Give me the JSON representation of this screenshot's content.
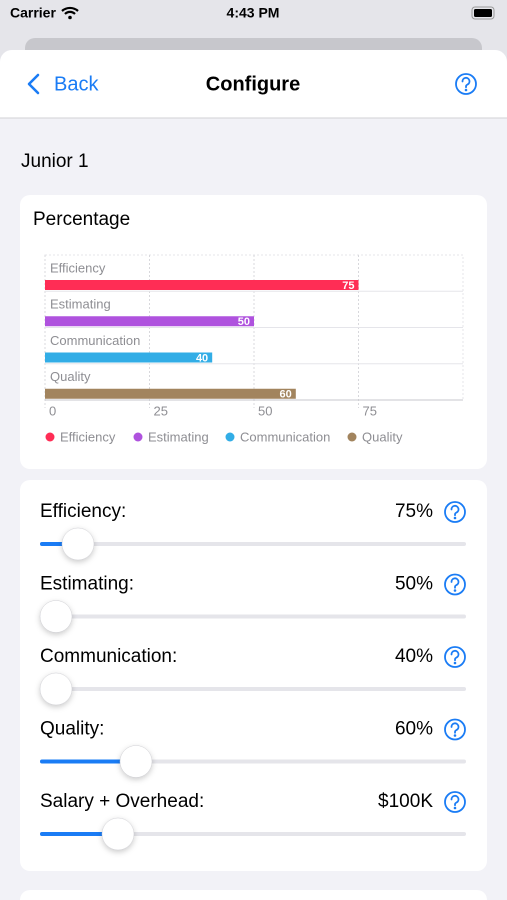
{
  "status_bar": {
    "carrier": "Carrier",
    "time": "4:43 PM"
  },
  "nav": {
    "back": "Back",
    "title": "Configure"
  },
  "section_title": "Junior 1",
  "chart_data": {
    "type": "bar",
    "orientation": "horizontal",
    "title": "Percentage",
    "categories": [
      "Efficiency",
      "Estimating",
      "Communication",
      "Quality"
    ],
    "values": [
      75,
      50,
      40,
      60
    ],
    "colors": [
      "#ff2d55",
      "#af52de",
      "#32ade6",
      "#a2845e"
    ],
    "xlim": [
      0,
      100
    ],
    "xticks": [
      0,
      25,
      50,
      75
    ],
    "grid": true,
    "legend": "bottom"
  },
  "controls": [
    {
      "label": "Efficiency:",
      "value_label": "75%"
    },
    {
      "label": "Estimating:",
      "value_label": "50%"
    },
    {
      "label": "Communication:",
      "value_label": "40%"
    },
    {
      "label": "Quality:",
      "value_label": "60%"
    },
    {
      "label": "Salary + Overhead:",
      "value_label": "$100K"
    }
  ]
}
